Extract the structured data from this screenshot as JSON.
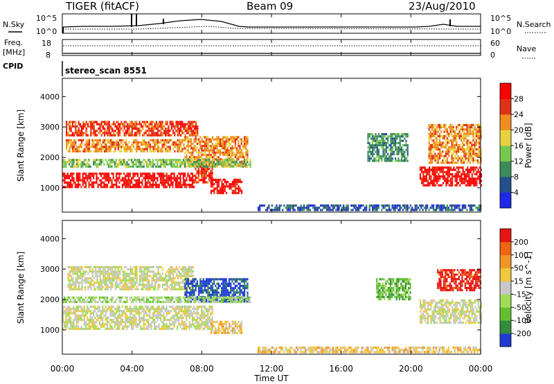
{
  "header": {
    "title": "TIGER (fitACF)",
    "beam": "Beam 09",
    "date": "23/Aug/2010"
  },
  "sky_panel": {
    "left_label": "N.Sky",
    "left_ticks": [
      "10^5",
      "10^0"
    ],
    "right_label": "N.Search",
    "right_ticks": [
      "10^5",
      "10^0"
    ]
  },
  "freq_panel": {
    "left_label_line1": "Freq.",
    "left_label_line2": "[MHz]",
    "left_ticks": [
      "18",
      "8"
    ],
    "right_label": "Nave",
    "right_ticks": [
      "60",
      "0"
    ]
  },
  "cpid_panel": {
    "label": "CPID",
    "text": "stereo_scan 8551"
  },
  "time_axis": {
    "label": "Time UT",
    "ticks": [
      "00:00",
      "04:00",
      "08:00",
      "12:00",
      "16:00",
      "20:00",
      "00:00"
    ]
  },
  "chart_data": [
    {
      "type": "heatmap",
      "name": "power-panel",
      "ylabel": "Slant Range [km]",
      "yticks": [
        1000,
        2000,
        3000,
        4000
      ],
      "ylim": [
        200,
        4600
      ],
      "xlim_hours": [
        0,
        24
      ],
      "colorbar": {
        "label": "Power [dB]",
        "ticks": [
          "4",
          "8",
          "12",
          "16",
          "20",
          "24",
          "28"
        ],
        "colors": [
          "#1e28e6",
          "#23508c",
          "#3c8c5a",
          "#78c850",
          "#e6d23c",
          "#f08c1e",
          "#e03214",
          "#ff0000"
        ]
      },
      "bands": [
        {
          "t": [
            0.0,
            7.6
          ],
          "range": [
            1000,
            1500
          ],
          "level": 7
        },
        {
          "t": [
            7.6,
            8.6
          ],
          "range": [
            1200,
            1800
          ],
          "level": 6
        },
        {
          "t": [
            8.5,
            10.3
          ],
          "range": [
            800,
            1300
          ],
          "level": 7
        },
        {
          "t": [
            0.2,
            7.8
          ],
          "range": [
            2750,
            3200
          ],
          "level": 6
        },
        {
          "t": [
            0.2,
            7.0
          ],
          "range": [
            2200,
            2600
          ],
          "level": 5
        },
        {
          "t": [
            7.0,
            10.6
          ],
          "range": [
            1700,
            2700
          ],
          "level": 5
        },
        {
          "t": [
            0.0,
            10.8
          ],
          "range": [
            1700,
            1950
          ],
          "level": 3
        },
        {
          "t": [
            11.2,
            24.0
          ],
          "range": [
            250,
            450
          ],
          "level": 1
        },
        {
          "t": [
            17.5,
            19.8
          ],
          "range": [
            1900,
            2800
          ],
          "level": 2
        },
        {
          "t": [
            20.5,
            24.0
          ],
          "range": [
            1100,
            1700
          ],
          "level": 7
        },
        {
          "t": [
            21.0,
            24.0
          ],
          "range": [
            1800,
            3100
          ],
          "level": 5
        }
      ]
    },
    {
      "type": "heatmap",
      "name": "velocity-panel",
      "ylabel": "Slant Range [km]",
      "yticks": [
        1000,
        2000,
        3000,
        4000
      ],
      "ylim": [
        200,
        4600
      ],
      "xlim_hours": [
        0,
        24
      ],
      "colorbar": {
        "label": "Velocity [m s^-1]",
        "ticks": [
          "200",
          "100",
          "50",
          "15",
          "-15",
          "-50",
          "-100",
          "-200"
        ],
        "colors": [
          "#1e3cd2",
          "#328c3c",
          "#64be32",
          "#a0dc5a",
          "#c8c8c8",
          "#f0c83c",
          "#f09628",
          "#f06414",
          "#e61414"
        ]
      },
      "bands": [
        {
          "t": [
            0.0,
            8.6
          ],
          "range": [
            1000,
            1800
          ],
          "level": 4
        },
        {
          "t": [
            8.5,
            10.3
          ],
          "range": [
            900,
            1300
          ],
          "level": 5
        },
        {
          "t": [
            0.3,
            7.5
          ],
          "range": [
            2300,
            3100
          ],
          "level": 4
        },
        {
          "t": [
            7.0,
            10.6
          ],
          "range": [
            1900,
            2700
          ],
          "level": 0
        },
        {
          "t": [
            0.0,
            10.8
          ],
          "range": [
            1900,
            2100
          ],
          "level": 3
        },
        {
          "t": [
            11.2,
            24.0
          ],
          "range": [
            250,
            450
          ],
          "level": 5
        },
        {
          "t": [
            18.0,
            20.0
          ],
          "range": [
            2000,
            2700
          ],
          "level": 2
        },
        {
          "t": [
            20.5,
            24.0
          ],
          "range": [
            1200,
            2000
          ],
          "level": 4
        },
        {
          "t": [
            21.5,
            24.0
          ],
          "range": [
            2300,
            3000
          ],
          "level": 8
        }
      ]
    }
  ]
}
